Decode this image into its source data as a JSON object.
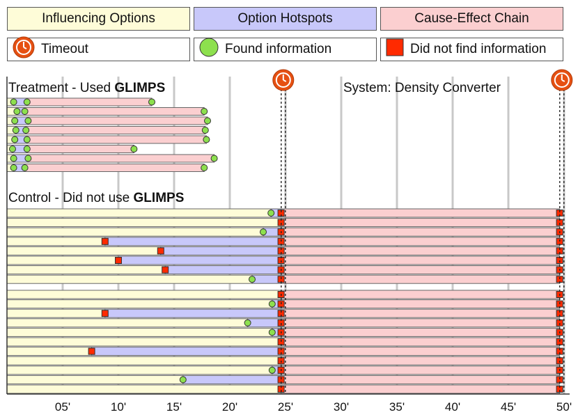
{
  "legend": {
    "phases": [
      {
        "label": "Influencing Options",
        "color": "#fefcd8"
      },
      {
        "label": "Option Hotspots",
        "color": "#c8c8fa"
      },
      {
        "label": "Cause-Effect Chain",
        "color": "#fbcfd0"
      }
    ],
    "symbols": [
      {
        "label": "Timeout",
        "icon": "clock-icon"
      },
      {
        "label": "Found information",
        "icon": "green-circle-icon"
      },
      {
        "label": "Did not find information",
        "icon": "red-square-icon"
      }
    ]
  },
  "colors": {
    "influencing": "#fefcd8",
    "hotspots": "#c8c8fa",
    "cause_effect": "#fbcfd0",
    "found": "#8de04e",
    "not_found": "#ff2a00",
    "clock": "#e65012",
    "gridline": "#c8c8c8"
  },
  "chart_data": {
    "type": "gantt",
    "title": "System: Density Converter",
    "x_unit": "minutes",
    "xlim": [
      0,
      50.5
    ],
    "tick_labels": [
      "05'",
      "10'",
      "15'",
      "20'",
      "25'",
      "30'",
      "35'",
      "40'",
      "45'",
      "50'"
    ],
    "tick_values": [
      5,
      10,
      15,
      20,
      25,
      30,
      35,
      40,
      45,
      50
    ],
    "timeouts": [
      24.8,
      49.8
    ],
    "treatment": {
      "label_prefix": "Treatment - Used ",
      "label_bold": "GLIMPS",
      "rows": [
        {
          "io_end": 0.6,
          "io_result": "found",
          "oh_end": 1.8,
          "oh_result": "found",
          "ce_end": 13.0,
          "ce_result": "found"
        },
        {
          "io_end": 0.9,
          "io_result": "found",
          "oh_end": 1.6,
          "oh_result": "found",
          "ce_end": 17.7,
          "ce_result": "found"
        },
        {
          "io_end": 0.7,
          "io_result": "found",
          "oh_end": 1.9,
          "oh_result": "found",
          "ce_end": 18.0,
          "ce_result": "found"
        },
        {
          "io_end": 0.8,
          "io_result": "found",
          "oh_end": 1.7,
          "oh_result": "found",
          "ce_end": 17.8,
          "ce_result": "found"
        },
        {
          "io_end": 0.7,
          "io_result": "found",
          "oh_end": 1.8,
          "oh_result": "found",
          "ce_end": 17.9,
          "ce_result": "found"
        },
        {
          "io_end": 0.5,
          "io_result": "found",
          "oh_end": 1.8,
          "oh_result": "found",
          "ce_end": 11.4,
          "ce_result": "found"
        },
        {
          "io_end": 0.6,
          "io_result": "found",
          "oh_end": 1.9,
          "oh_result": "found",
          "ce_end": 18.6,
          "ce_result": "found"
        },
        {
          "io_end": 0.6,
          "io_result": "found",
          "oh_end": 1.6,
          "oh_result": "found",
          "ce_end": 17.7,
          "ce_result": "found"
        }
      ]
    },
    "control": {
      "label_prefix": "Control - Did not use ",
      "label_bold": "GLIMPS",
      "group_a": [
        {
          "io_end": 23.7,
          "io_result": "found",
          "oh_end": 24.6,
          "oh_result": "not_found",
          "ce_end": 49.6,
          "ce_result": "not_found"
        },
        {
          "io_end": 24.6,
          "io_result": "not_found",
          "oh_end": 24.6,
          "oh_result": "none",
          "ce_end": 49.6,
          "ce_result": "not_found"
        },
        {
          "io_end": 23.0,
          "io_result": "found",
          "oh_end": 24.6,
          "oh_result": "not_found",
          "ce_end": 49.6,
          "ce_result": "not_found"
        },
        {
          "io_end": 8.8,
          "io_result": "not_found",
          "oh_end": 24.6,
          "oh_result": "not_found",
          "ce_end": 49.6,
          "ce_result": "not_found"
        },
        {
          "io_end": 13.8,
          "io_result": "not_found",
          "oh_end": 24.6,
          "oh_result": "not_found",
          "ce_end": 49.6,
          "ce_result": "not_found"
        },
        {
          "io_end": 10.0,
          "io_result": "not_found",
          "oh_end": 24.6,
          "oh_result": "not_found",
          "ce_end": 49.6,
          "ce_result": "not_found"
        },
        {
          "io_end": 14.2,
          "io_result": "not_found",
          "oh_end": 24.6,
          "oh_result": "not_found",
          "ce_end": 49.6,
          "ce_result": "not_found"
        },
        {
          "io_end": 22.0,
          "io_result": "found",
          "oh_end": 24.6,
          "oh_result": "not_found",
          "ce_end": 49.6,
          "ce_result": "not_found"
        }
      ],
      "group_b": [
        {
          "io_end": 24.6,
          "io_result": "not_found",
          "oh_end": 24.6,
          "oh_result": "none",
          "ce_end": 49.6,
          "ce_result": "not_found"
        },
        {
          "io_end": 23.8,
          "io_result": "found",
          "oh_end": 24.6,
          "oh_result": "not_found",
          "ce_end": 49.6,
          "ce_result": "not_found"
        },
        {
          "io_end": 8.8,
          "io_result": "not_found",
          "oh_end": 24.6,
          "oh_result": "not_found",
          "ce_end": 49.6,
          "ce_result": "not_found"
        },
        {
          "io_end": 21.6,
          "io_result": "found",
          "oh_end": 24.6,
          "oh_result": "not_found",
          "ce_end": 49.6,
          "ce_result": "not_found"
        },
        {
          "io_end": 23.8,
          "io_result": "found",
          "oh_end": 24.6,
          "oh_result": "not_found",
          "ce_end": 49.6,
          "ce_result": "not_found"
        },
        {
          "io_end": 24.6,
          "io_result": "not_found",
          "oh_end": 24.6,
          "oh_result": "none",
          "ce_end": 49.6,
          "ce_result": "not_found"
        },
        {
          "io_end": 7.6,
          "io_result": "not_found",
          "oh_end": 24.6,
          "oh_result": "not_found",
          "ce_end": 49.6,
          "ce_result": "not_found"
        },
        {
          "io_end": 24.6,
          "io_result": "not_found",
          "oh_end": 24.6,
          "oh_result": "none",
          "ce_end": 49.6,
          "ce_result": "not_found"
        },
        {
          "io_end": 23.8,
          "io_result": "found",
          "oh_end": 24.6,
          "oh_result": "not_found",
          "ce_end": 49.6,
          "ce_result": "not_found"
        },
        {
          "io_end": 15.8,
          "io_result": "found",
          "oh_end": 24.6,
          "oh_result": "not_found",
          "ce_end": 49.6,
          "ce_result": "not_found"
        },
        {
          "io_end": 24.6,
          "io_result": "not_found",
          "oh_end": 24.6,
          "oh_result": "none",
          "ce_end": 49.6,
          "ce_result": "not_found"
        }
      ]
    }
  }
}
